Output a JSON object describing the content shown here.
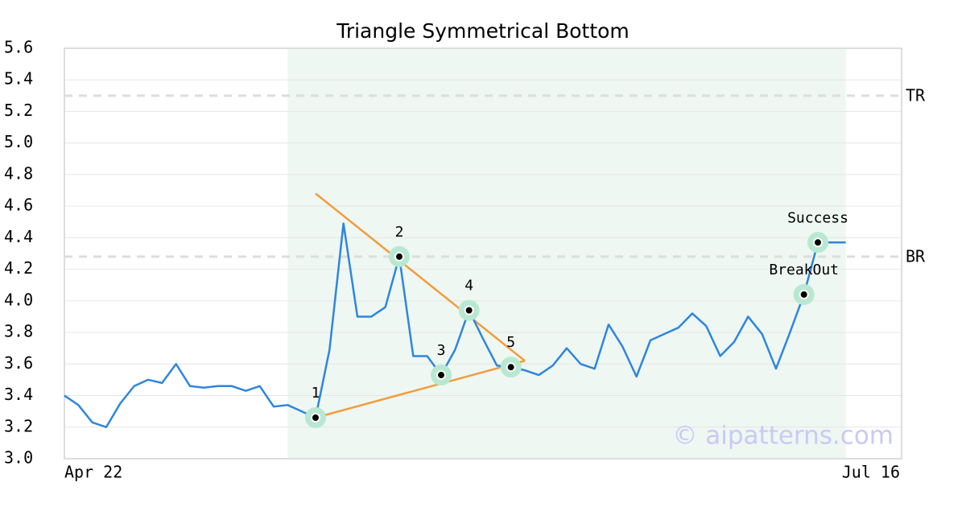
{
  "chart_data": {
    "type": "line",
    "title": "Triangle Symmetrical Bottom",
    "xlim": [
      0,
      60
    ],
    "xticks": [
      {
        "value": 0,
        "label": "Apr 22"
      },
      {
        "value": 60,
        "label": "Jul 16"
      }
    ],
    "ylim": [
      3.0,
      5.6
    ],
    "yticks": [
      {
        "value": 3,
        "label": "3.0"
      },
      3.2,
      3.4,
      3.6,
      3.8,
      {
        "value": 4,
        "label": "4.0"
      },
      4.2,
      4.4,
      4.6,
      4.8,
      {
        "value": 5,
        "label": "5.0"
      },
      5.2,
      5.4,
      5.6
    ],
    "grid": true,
    "color": "#2e86de",
    "values": [
      3.4,
      3.34,
      3.23,
      3.2,
      3.35,
      3.46,
      3.5,
      3.48,
      3.6,
      3.46,
      3.45,
      3.46,
      3.46,
      3.43,
      3.46,
      3.33,
      3.34,
      3.3,
      3.26,
      3.69,
      4.49,
      3.9,
      3.9,
      3.96,
      4.28,
      3.65,
      3.65,
      3.53,
      3.69,
      3.94,
      3.76,
      3.59,
      3.58,
      3.56,
      3.53,
      3.59,
      3.7,
      3.6,
      3.57,
      3.85,
      3.71,
      3.52,
      3.75,
      3.79,
      3.83,
      3.92,
      3.84,
      3.65,
      3.74,
      3.9,
      3.79,
      3.57,
      3.8,
      4.04,
      4.37,
      4.37,
      4.37
    ],
    "highlight_range": [
      16,
      56
    ],
    "highlight_color": "#eef7f2",
    "hlines": [
      {
        "value": 5.3,
        "label": "TR"
      },
      {
        "value": 4.28,
        "label": "BR"
      }
    ],
    "trendline_color": "#f39c3c",
    "trendlines": [
      {
        "x": [
          18,
          33
        ],
        "y": [
          4.68,
          3.62
        ]
      },
      {
        "x": [
          18,
          33
        ],
        "y": [
          3.26,
          3.62
        ]
      }
    ],
    "annotations": [
      {
        "index": 18,
        "label": "1"
      },
      {
        "index": 24,
        "label": "2"
      },
      {
        "index": 27,
        "label": "3"
      },
      {
        "index": 29,
        "label": "4"
      },
      {
        "index": 32,
        "label": "5"
      },
      {
        "index": 53,
        "label": "BreakOut"
      },
      {
        "index": 54,
        "label": "Success"
      }
    ],
    "watermark": "© aipatterns.com"
  }
}
